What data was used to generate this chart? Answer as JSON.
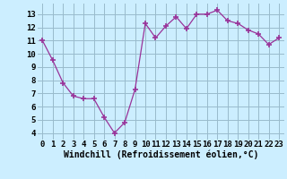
{
  "x": [
    0,
    1,
    2,
    3,
    4,
    5,
    6,
    7,
    8,
    9,
    10,
    11,
    12,
    13,
    14,
    15,
    16,
    17,
    18,
    19,
    20,
    21,
    22,
    23
  ],
  "y": [
    11,
    9.5,
    7.8,
    6.8,
    6.6,
    6.6,
    5.2,
    4.0,
    4.8,
    7.3,
    12.3,
    11.2,
    12.1,
    12.8,
    11.9,
    13.0,
    13.0,
    13.3,
    12.5,
    12.3,
    11.8,
    11.5,
    10.7,
    11.2
  ],
  "line_color": "#993399",
  "marker": "+",
  "bg_color": "#cceeff",
  "grid_color": "#99bbcc",
  "xlabel": "Windchill (Refroidissement éolien,°C)",
  "xtick_labels": [
    "0",
    "1",
    "2",
    "3",
    "4",
    "5",
    "6",
    "7",
    "8",
    "9",
    "10",
    "11",
    "12",
    "13",
    "14",
    "15",
    "16",
    "17",
    "18",
    "19",
    "20",
    "21",
    "22",
    "23"
  ],
  "ytick_labels": [
    "4",
    "5",
    "6",
    "7",
    "8",
    "9",
    "10",
    "11",
    "12",
    "13"
  ],
  "ylim": [
    3.5,
    13.8
  ],
  "xlim": [
    -0.5,
    23.5
  ],
  "xlabel_fontsize": 7,
  "tick_fontsize": 6.5,
  "label_font": "monospace"
}
